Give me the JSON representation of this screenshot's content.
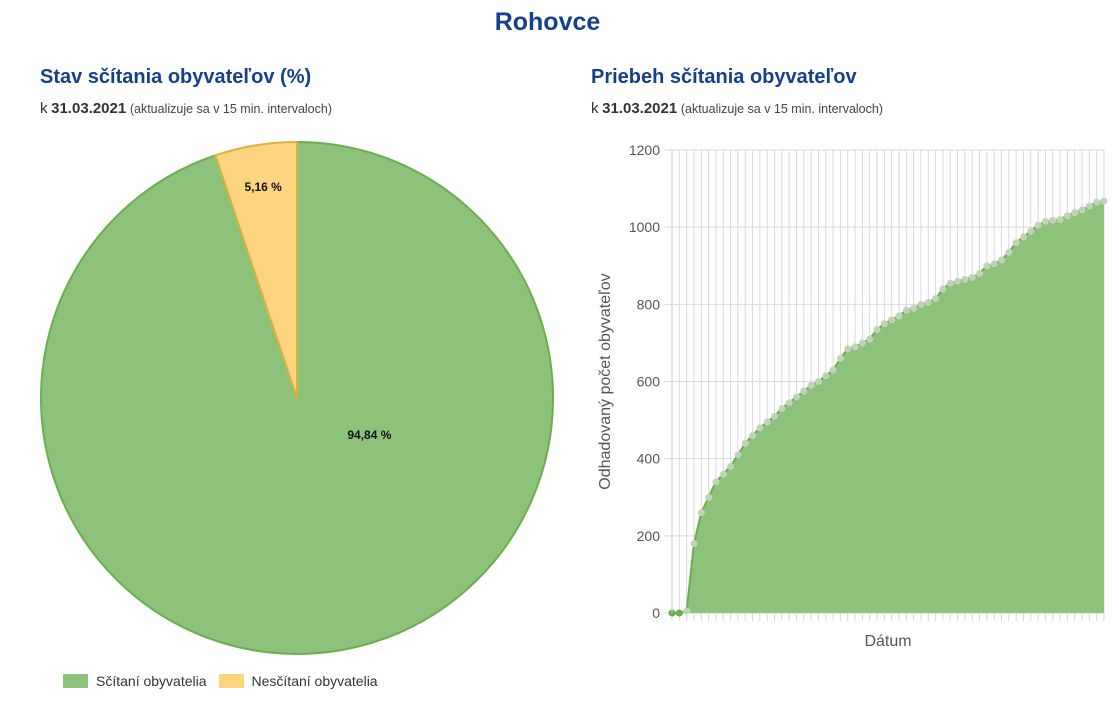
{
  "page": {
    "title": "Rohovce"
  },
  "left": {
    "title": "Stav sčítania obyvateľov (%)",
    "subtitle_prefix": "k",
    "subtitle_date": "31.03.2021",
    "subtitle_note": "(aktualizuje sa v 15 min. intervaloch)"
  },
  "right": {
    "title": "Priebeh sčítania obyvateľov",
    "subtitle_prefix": "k",
    "subtitle_date": "31.03.2021",
    "subtitle_note": "(aktualizuje sa v 15 min. intervaloch)"
  },
  "chart_data": [
    {
      "type": "pie",
      "slices": [
        {
          "label": "Sčítaní obyvatelia",
          "value": 94.84,
          "display": "94,84 %",
          "color": "#8cc27a",
          "stroke": "#6cad4e"
        },
        {
          "label": "Nesčítaní obyvatelia",
          "value": 5.16,
          "display": "5,16 %",
          "color": "#fdd480",
          "stroke": "#e0b040"
        }
      ],
      "legend_position": "bottom-left"
    },
    {
      "type": "area",
      "xlabel": "Dátum",
      "ylabel": "Odhadovaný počet obyvateľov",
      "ylim": [
        0,
        1200
      ],
      "yticks": [
        0,
        200,
        400,
        600,
        800,
        1000,
        1200
      ],
      "grid": true,
      "color": "#8cc27a",
      "stroke": "#6cad4e",
      "series": [
        {
          "values": [
            0,
            0,
            5,
            180,
            260,
            300,
            340,
            360,
            380,
            410,
            440,
            460,
            480,
            495,
            510,
            530,
            545,
            560,
            575,
            590,
            600,
            615,
            630,
            660,
            685,
            690,
            700,
            710,
            735,
            750,
            760,
            770,
            785,
            790,
            800,
            805,
            815,
            840,
            855,
            860,
            865,
            870,
            880,
            900,
            905,
            915,
            935,
            960,
            975,
            990,
            1005,
            1015,
            1018,
            1020,
            1030,
            1038,
            1045,
            1055,
            1065,
            1068
          ]
        }
      ]
    }
  ]
}
